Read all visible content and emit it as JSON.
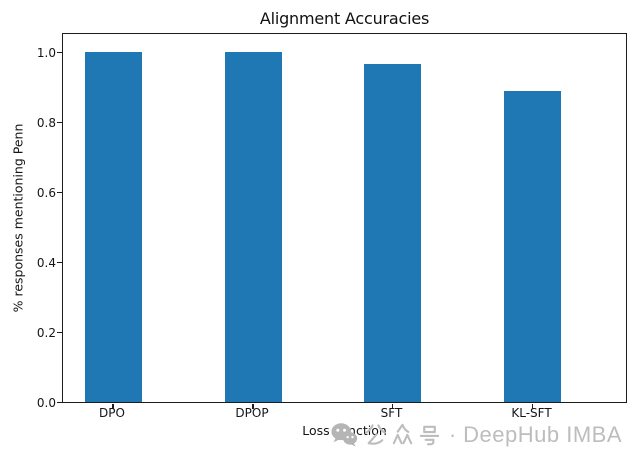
{
  "chart_data": {
    "type": "bar",
    "title": "Alignment Accuracies",
    "xlabel": "Loss Function",
    "ylabel": "% responses mentioning Penn",
    "categories": [
      "DPO",
      "DPOP",
      "SFT",
      "KL-SFT"
    ],
    "values": [
      1.0,
      1.0,
      0.965,
      0.89
    ],
    "yticks": [
      0.0,
      0.2,
      0.4,
      0.6,
      0.8,
      1.0
    ],
    "ylim": [
      0.0,
      1.057
    ],
    "grid": false,
    "legend": "none",
    "bar_color": "#1f77b4"
  },
  "watermark": {
    "icon": "wechat-icon",
    "text": "公众号 · DeepHub IMBA",
    "cjk": "公众号",
    "separator": "·",
    "brand": "DeepHub IMBA",
    "color": "#bdbdbd"
  }
}
